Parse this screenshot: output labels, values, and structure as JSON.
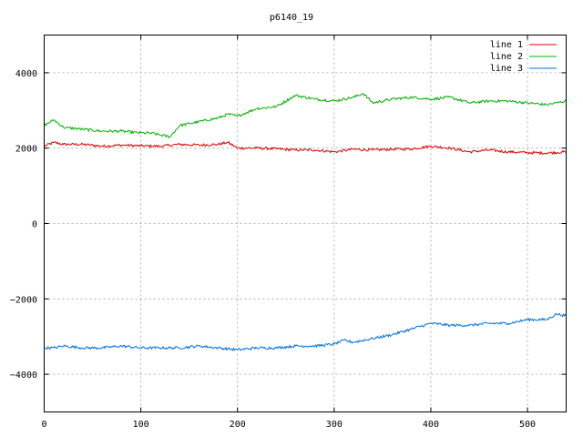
{
  "chart_data": {
    "type": "line",
    "title": "p6140_19",
    "xlim": [
      0,
      540
    ],
    "ylim": [
      -5000,
      5000
    ],
    "x_ticks": [
      0,
      100,
      200,
      300,
      400,
      500
    ],
    "y_ticks": [
      -4000,
      -2000,
      0,
      2000,
      4000
    ],
    "grid": true,
    "legend_position": "top-right",
    "series": [
      {
        "name": "line 1",
        "color": "#e00000",
        "x": [
          0,
          10,
          20,
          40,
          60,
          80,
          100,
          120,
          140,
          160,
          180,
          190,
          200,
          220,
          240,
          260,
          280,
          300,
          320,
          340,
          360,
          380,
          400,
          420,
          440,
          460,
          480,
          500,
          520,
          540
        ],
        "y": [
          2050,
          2150,
          2100,
          2100,
          2050,
          2080,
          2060,
          2050,
          2100,
          2080,
          2100,
          2150,
          2000,
          2000,
          1980,
          1950,
          1950,
          1900,
          1970,
          1950,
          1970,
          1980,
          2050,
          2000,
          1900,
          1950,
          1900,
          1880,
          1870,
          1900
        ]
      },
      {
        "name": "line 2",
        "color": "#00b000",
        "x": [
          0,
          10,
          20,
          40,
          60,
          80,
          100,
          110,
          120,
          130,
          140,
          160,
          180,
          190,
          200,
          210,
          220,
          240,
          260,
          280,
          300,
          320,
          330,
          340,
          360,
          380,
          400,
          420,
          440,
          460,
          480,
          500,
          520,
          530,
          540
        ],
        "y": [
          2600,
          2750,
          2550,
          2500,
          2450,
          2450,
          2400,
          2400,
          2350,
          2300,
          2600,
          2700,
          2800,
          2900,
          2850,
          2950,
          3050,
          3100,
          3400,
          3300,
          3250,
          3350,
          3450,
          3200,
          3300,
          3350,
          3300,
          3350,
          3200,
          3250,
          3250,
          3200,
          3150,
          3200,
          3250
        ]
      },
      {
        "name": "line 3",
        "color": "#0070e0",
        "x": [
          0,
          10,
          20,
          40,
          60,
          80,
          100,
          120,
          140,
          160,
          180,
          200,
          220,
          240,
          260,
          280,
          300,
          310,
          320,
          340,
          360,
          380,
          400,
          420,
          440,
          460,
          480,
          500,
          520,
          530,
          540
        ],
        "y": [
          -3300,
          -3300,
          -3250,
          -3300,
          -3300,
          -3250,
          -3300,
          -3300,
          -3300,
          -3250,
          -3300,
          -3350,
          -3300,
          -3300,
          -3250,
          -3250,
          -3200,
          -3100,
          -3150,
          -3050,
          -2950,
          -2800,
          -2650,
          -2700,
          -2700,
          -2650,
          -2650,
          -2550,
          -2550,
          -2400,
          -2450
        ]
      }
    ]
  }
}
